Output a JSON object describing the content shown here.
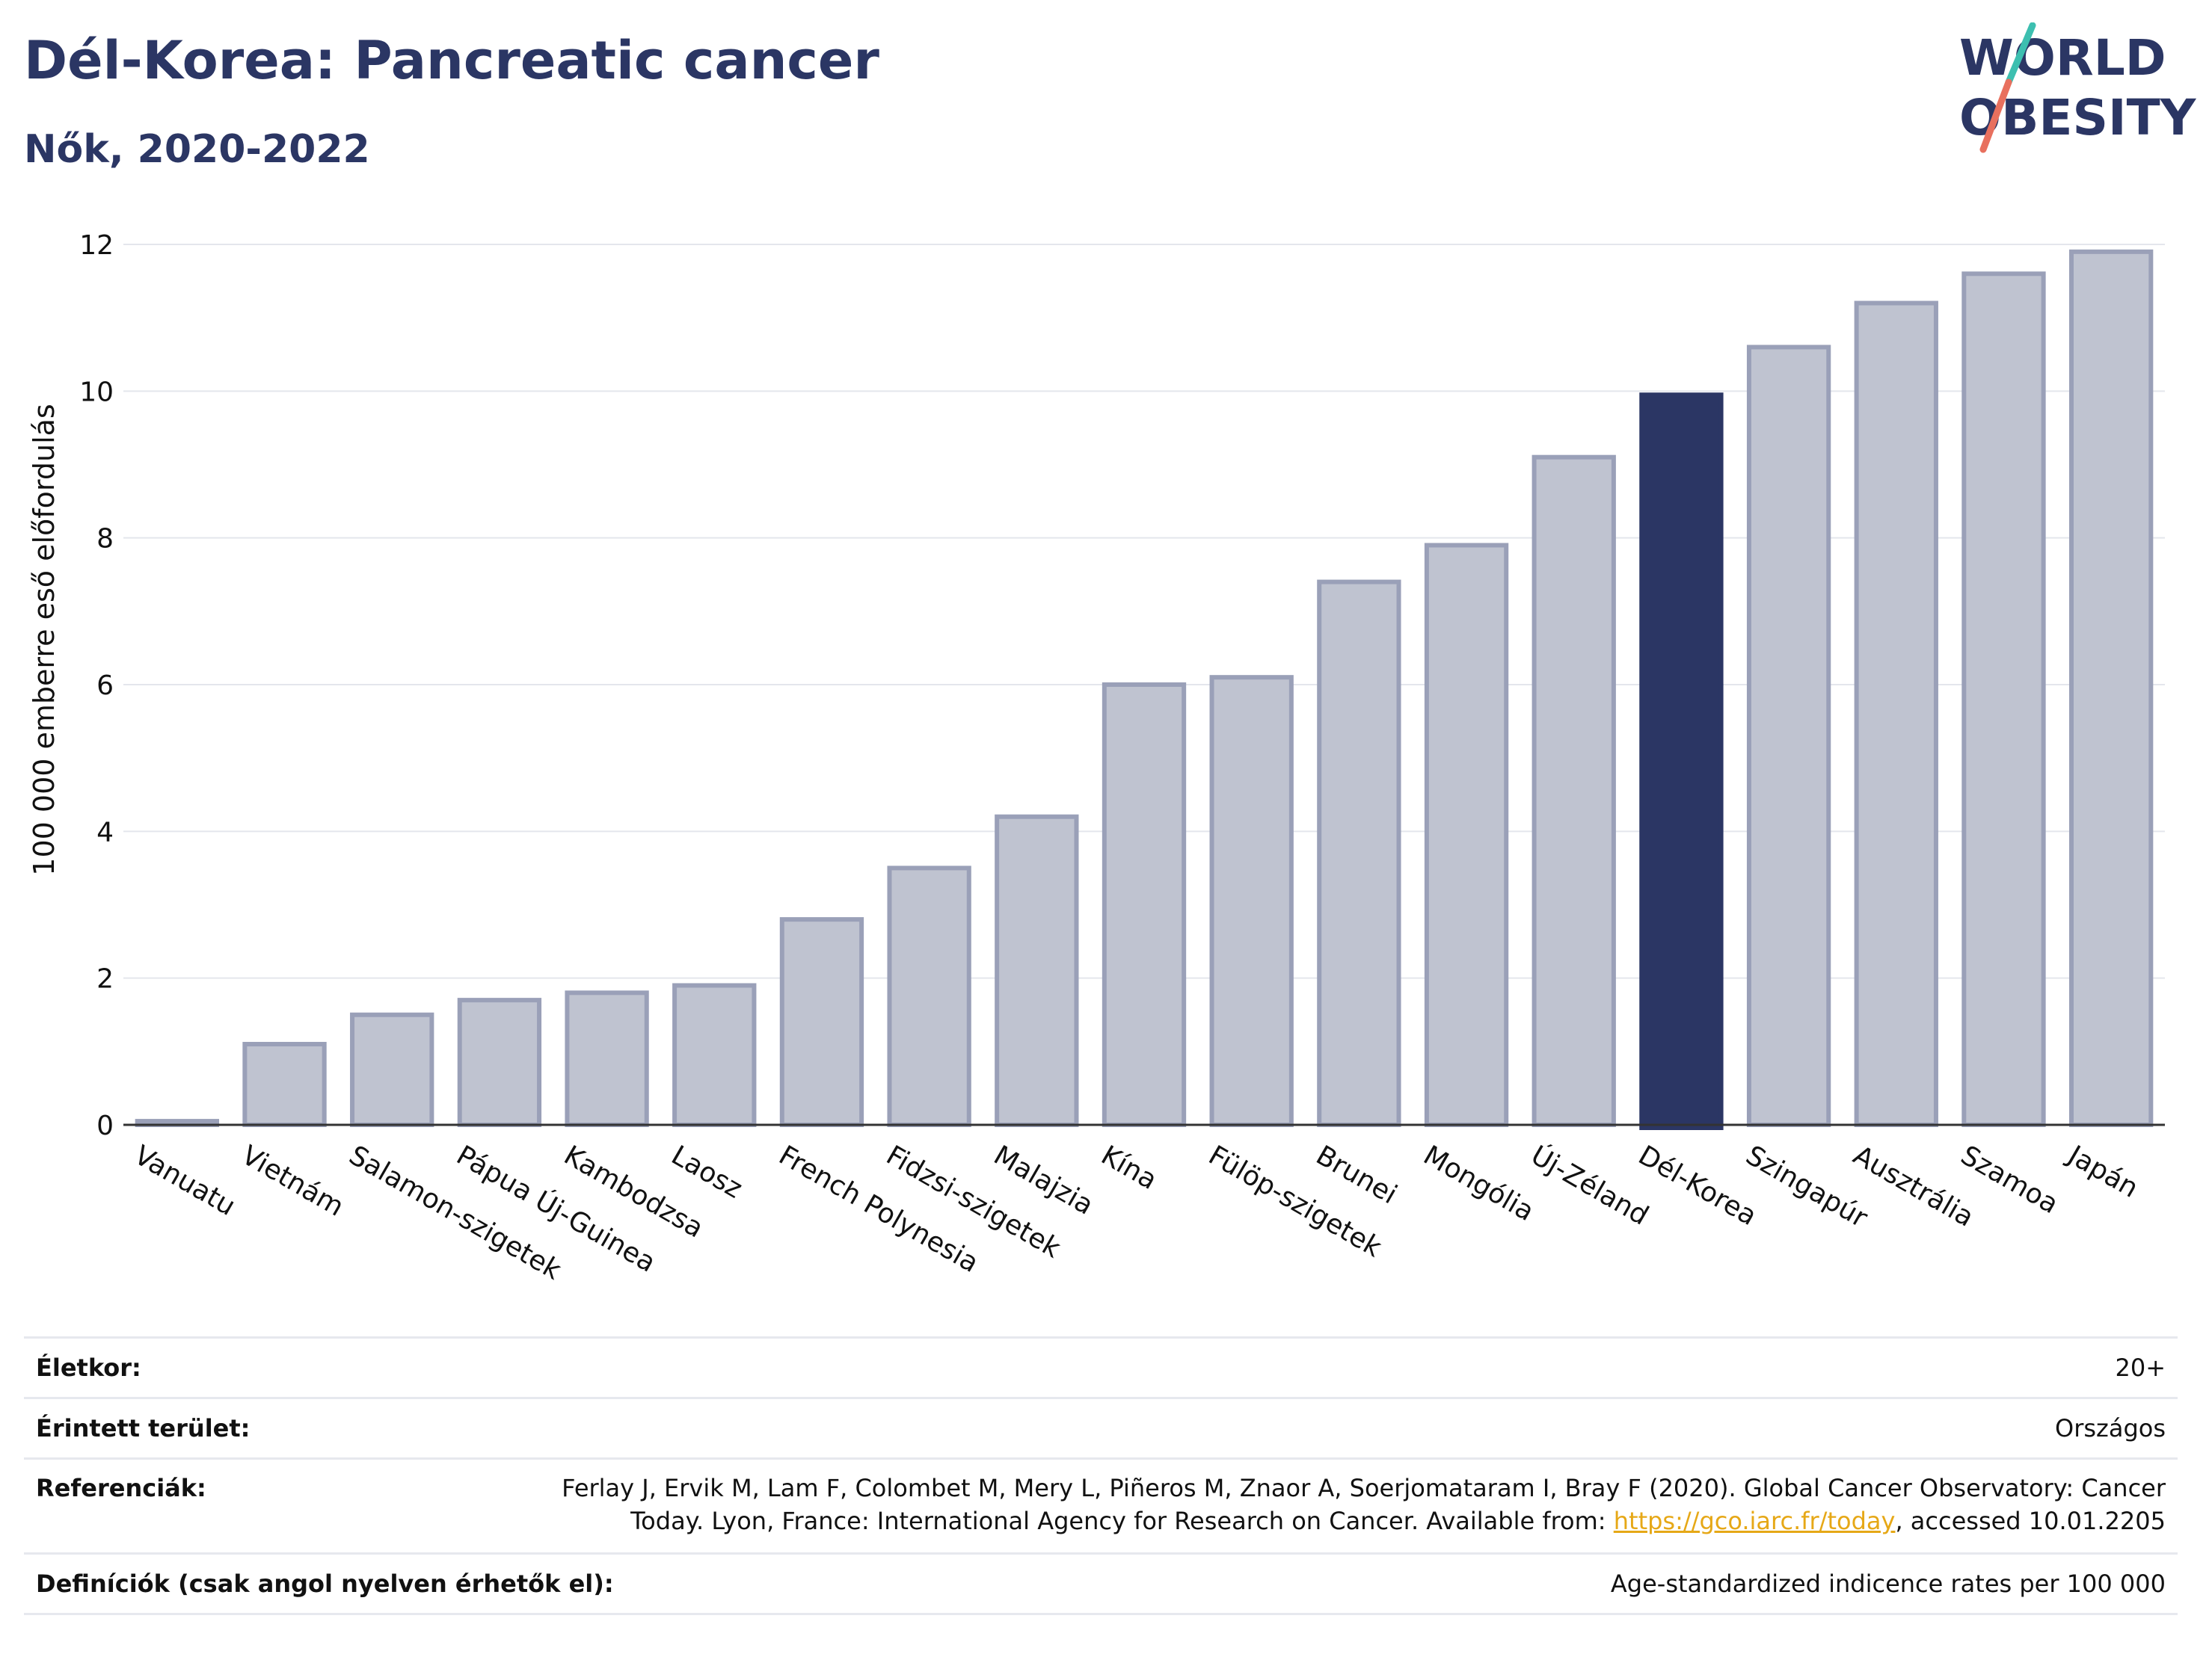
{
  "header": {
    "title": "Dél-Korea: Pancreatic cancer",
    "subtitle": "Nők, 2020-2022"
  },
  "logo": {
    "line1": "WORLD",
    "line2": "OBESITY",
    "colors": {
      "text": "#2b3664",
      "slash_top": "#3dbfb0",
      "slash_bottom": "#e8705e"
    }
  },
  "chart_data": {
    "type": "bar",
    "ylabel": "100 000 emberre eső előfordulás",
    "ylim": [
      0,
      12
    ],
    "yticks": [
      0,
      2,
      4,
      6,
      8,
      10,
      12
    ],
    "grid": true,
    "categories": [
      "Vanuatu",
      "Vietnám",
      "Salamon-szigetek",
      "Pápua Új-Guinea",
      "Kambodzsa",
      "Laosz",
      "French Polynesia",
      "Fidzsi-szigetek",
      "Malajzia",
      "Kína",
      "Fülöp-szigetek",
      "Brunei",
      "Mongólia",
      "Új-Zéland",
      "Dél-Korea",
      "Szingapúr",
      "Ausztrália",
      "Szamoa",
      "Japán"
    ],
    "values": [
      0.05,
      1.1,
      1.5,
      1.7,
      1.8,
      1.9,
      2.8,
      3.5,
      4.2,
      6.0,
      6.1,
      7.4,
      7.9,
      9.1,
      9.95,
      10.6,
      11.2,
      11.6,
      11.9
    ],
    "highlight": "Dél-Korea",
    "colors": {
      "bar": "#bfc3d0",
      "bar_border": "#9aa0b8",
      "highlight": "#2b3664"
    }
  },
  "meta": {
    "age_label": "Életkor:",
    "age_value": "20+",
    "area_label": "Érintett terület:",
    "area_value": "Országos",
    "ref_label": "Referenciák:",
    "ref_line1": "Ferlay J, Ervik M, Lam F, Colombet M, Mery L, Piñeros M, Znaor A, Soerjomataram I, Bray F (2020). Global Cancer Observatory: Cancer",
    "ref_line2_pre": "Today. Lyon, France: International Agency for Research on Cancer. Available from: ",
    "ref_link": "https://gco.iarc.fr/today",
    "ref_line2_post": ", accessed 10.01.2205",
    "def_label": "Definíciók (csak angol nyelven érhetők el):",
    "def_value": "Age-standardized indicence rates per 100 000"
  }
}
